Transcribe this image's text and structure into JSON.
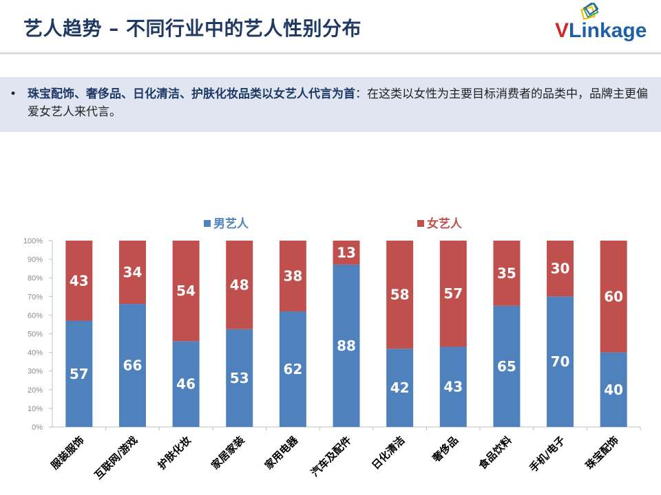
{
  "header": {
    "title": "艺人趋势 – 不同行业中的艺人性别分布"
  },
  "logo": {
    "brand_v": "V",
    "brand_link": "Link",
    "brand_age": "age"
  },
  "callout": {
    "bullet": "•",
    "bold_text": "珠宝配饰、奢侈品、日化清洁、护肤化妆品类以女艺人代言为首",
    "rest_text": "：在这类以女性为主要目标消费者的品类中，品牌主更偏爱女艺人来代言。"
  },
  "colors": {
    "male": "#4f81bd",
    "female": "#c0504d",
    "title": "#1f3864"
  },
  "chart_data": {
    "type": "bar",
    "stacked": true,
    "percent": true,
    "categories": [
      "服装服饰",
      "互联网/游戏",
      "护肤化妆",
      "家居家装",
      "家用电器",
      "汽车及配件",
      "日化清洁",
      "奢侈品",
      "食品饮料",
      "手机/电子",
      "珠宝配饰"
    ],
    "series": [
      {
        "name": "男艺人",
        "values": [
          57,
          66,
          46,
          53,
          62,
          88,
          42,
          43,
          65,
          70,
          40
        ]
      },
      {
        "name": "女艺人",
        "values": [
          43,
          34,
          54,
          48,
          38,
          13,
          58,
          57,
          35,
          30,
          60
        ]
      }
    ],
    "ylim": [
      0,
      100
    ],
    "yticks": [
      "0%",
      "10%",
      "20%",
      "30%",
      "40%",
      "50%",
      "60%",
      "70%",
      "80%",
      "90%",
      "100%"
    ],
    "legend_position": "top",
    "grid": false
  }
}
